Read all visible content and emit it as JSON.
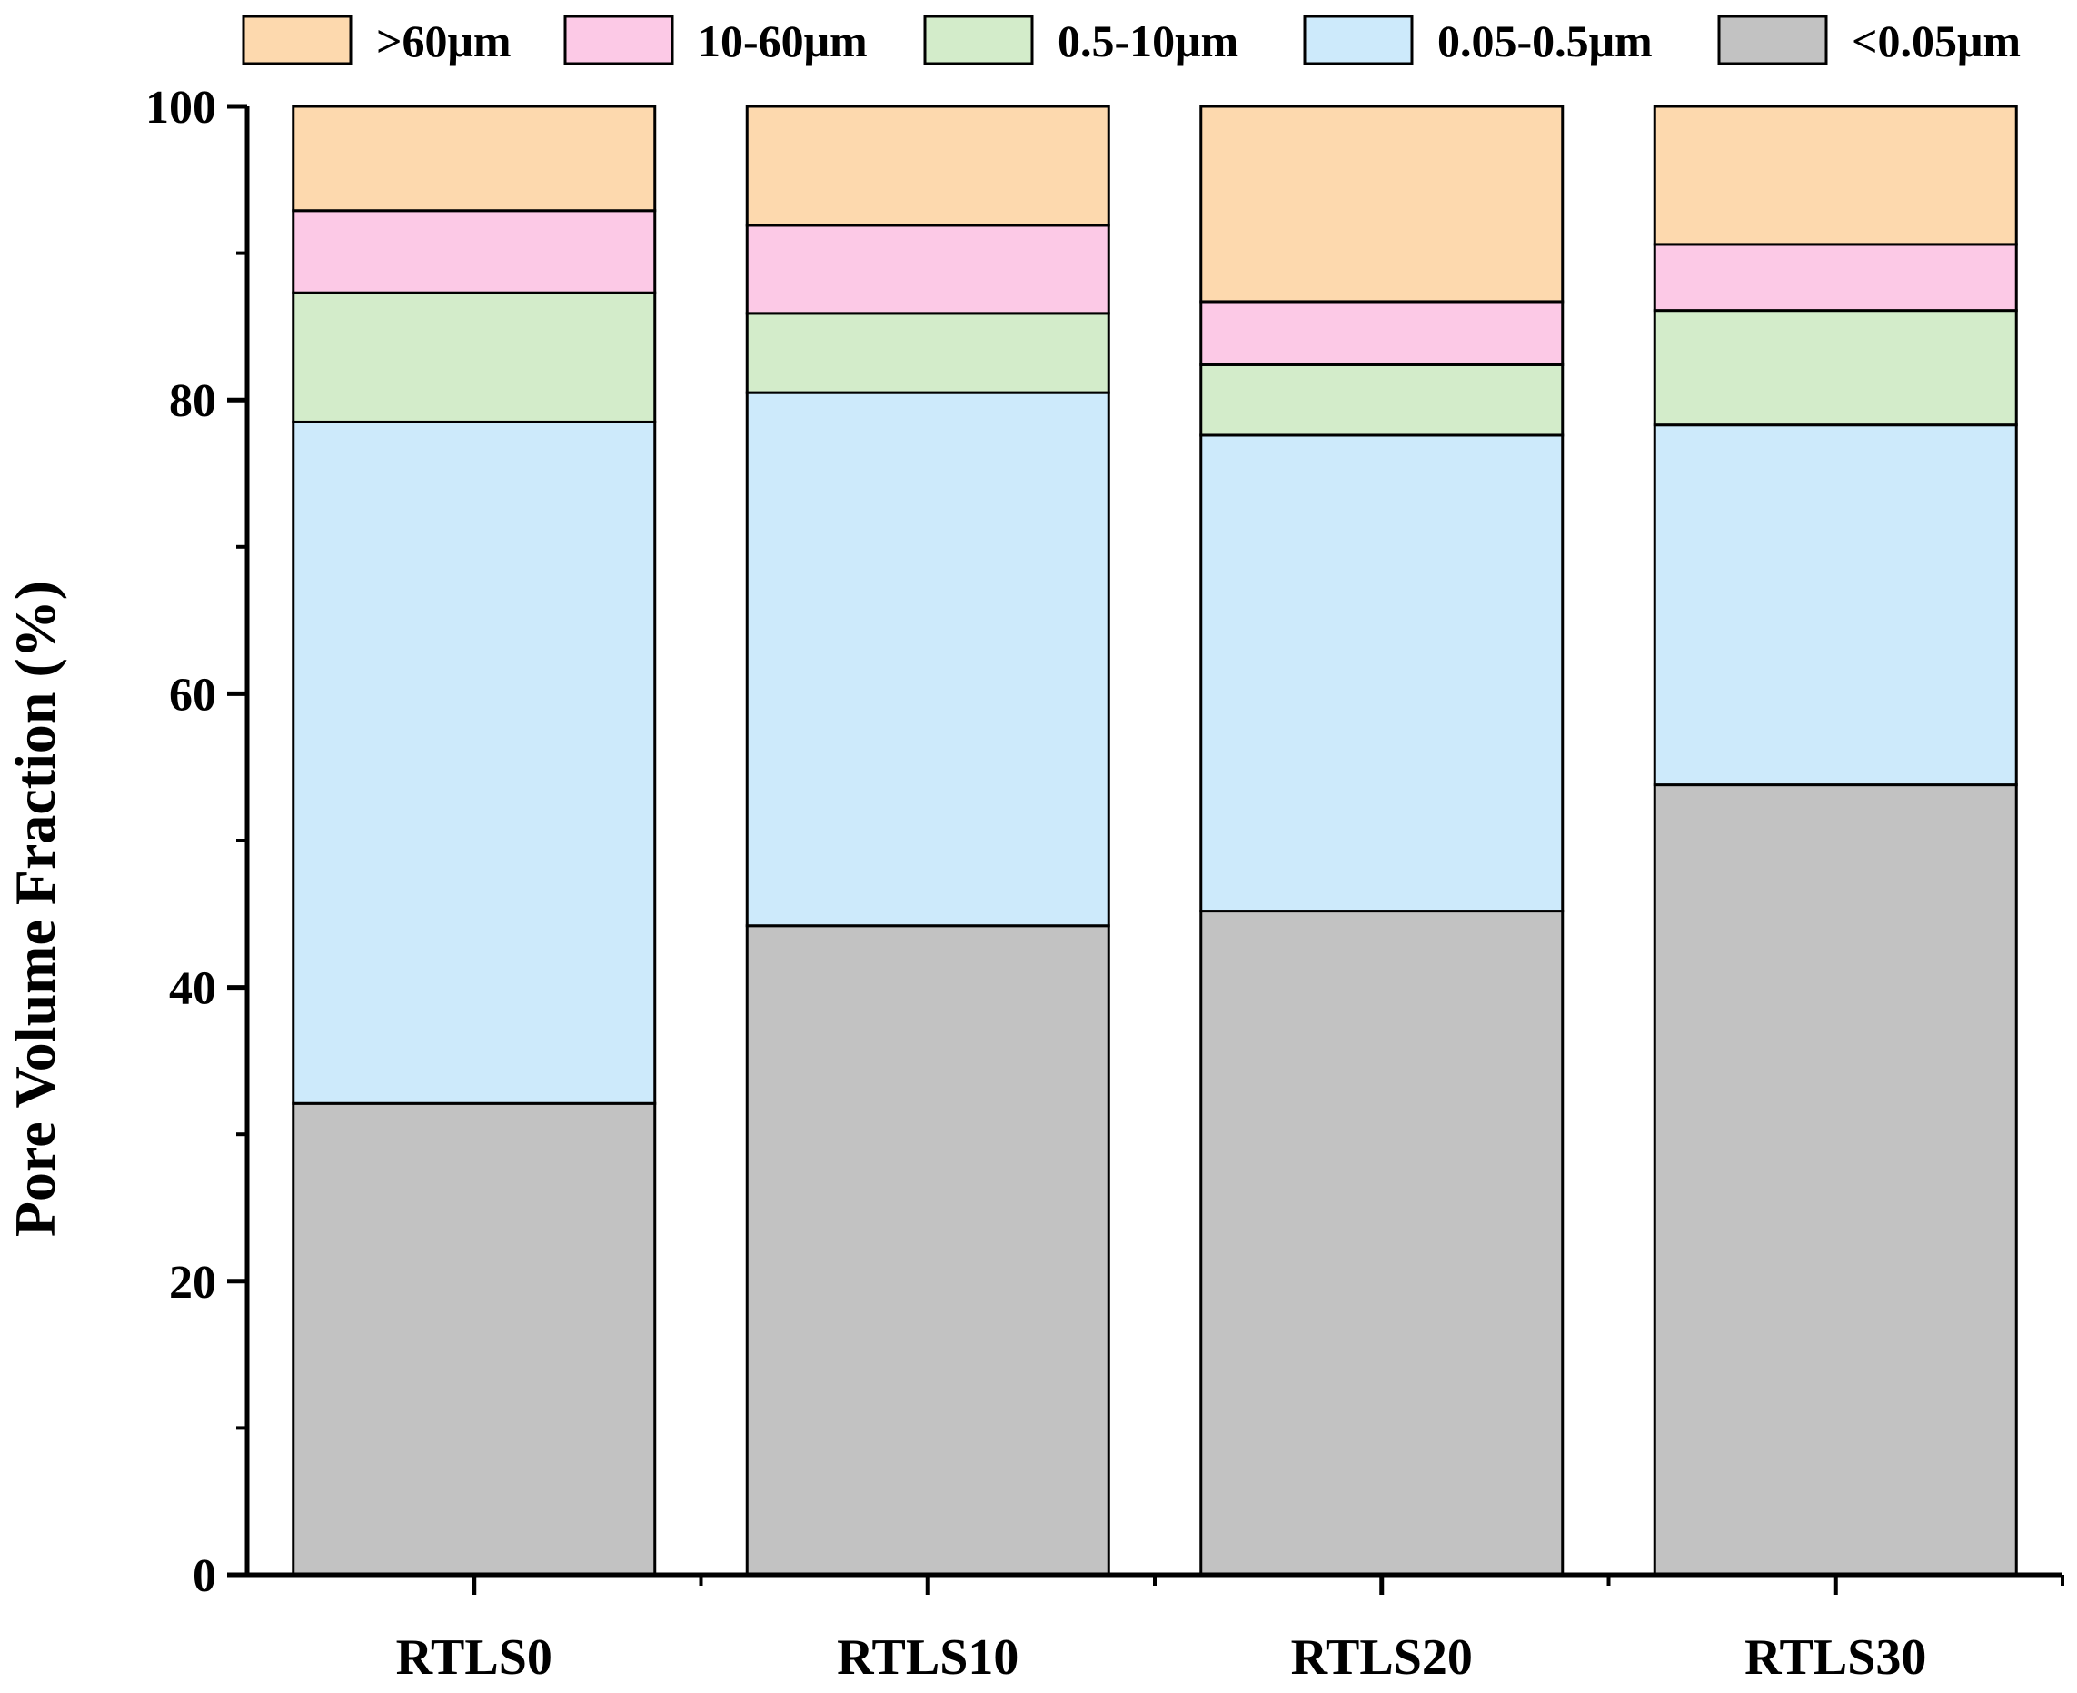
{
  "chart_data": {
    "type": "bar",
    "stacked": true,
    "title": "",
    "xlabel": "",
    "ylabel": "Pore Volume Fraction (%)",
    "ylim": [
      0,
      100
    ],
    "yticks": [
      0,
      20,
      40,
      60,
      80,
      100
    ],
    "categories": [
      "RTLS0",
      "RTLS10",
      "RTLS20",
      "RTLS30"
    ],
    "legend_position": "top",
    "series": [
      {
        "name": "<0.05μm",
        "color": "#c2c2c2",
        "values": [
          32.1,
          44.2,
          45.2,
          53.8
        ]
      },
      {
        "name": "0.05-0.5μm",
        "color": "#cdeafb",
        "values": [
          46.4,
          36.3,
          32.4,
          24.5
        ]
      },
      {
        "name": "0.5-10μm",
        "color": "#d3ecca",
        "values": [
          8.8,
          5.4,
          4.8,
          7.8
        ]
      },
      {
        "name": "10-60μm",
        "color": "#fcc9e6",
        "values": [
          5.6,
          6.0,
          4.3,
          4.5
        ]
      },
      {
        "name": ">60μm",
        "color": "#fdd9ae",
        "values": [
          7.1,
          8.1,
          13.3,
          9.4
        ]
      }
    ],
    "legend_order": [
      ">60μm",
      "10-60μm",
      "0.5-10μm",
      "0.05-0.5μm",
      "<0.05μm"
    ]
  }
}
